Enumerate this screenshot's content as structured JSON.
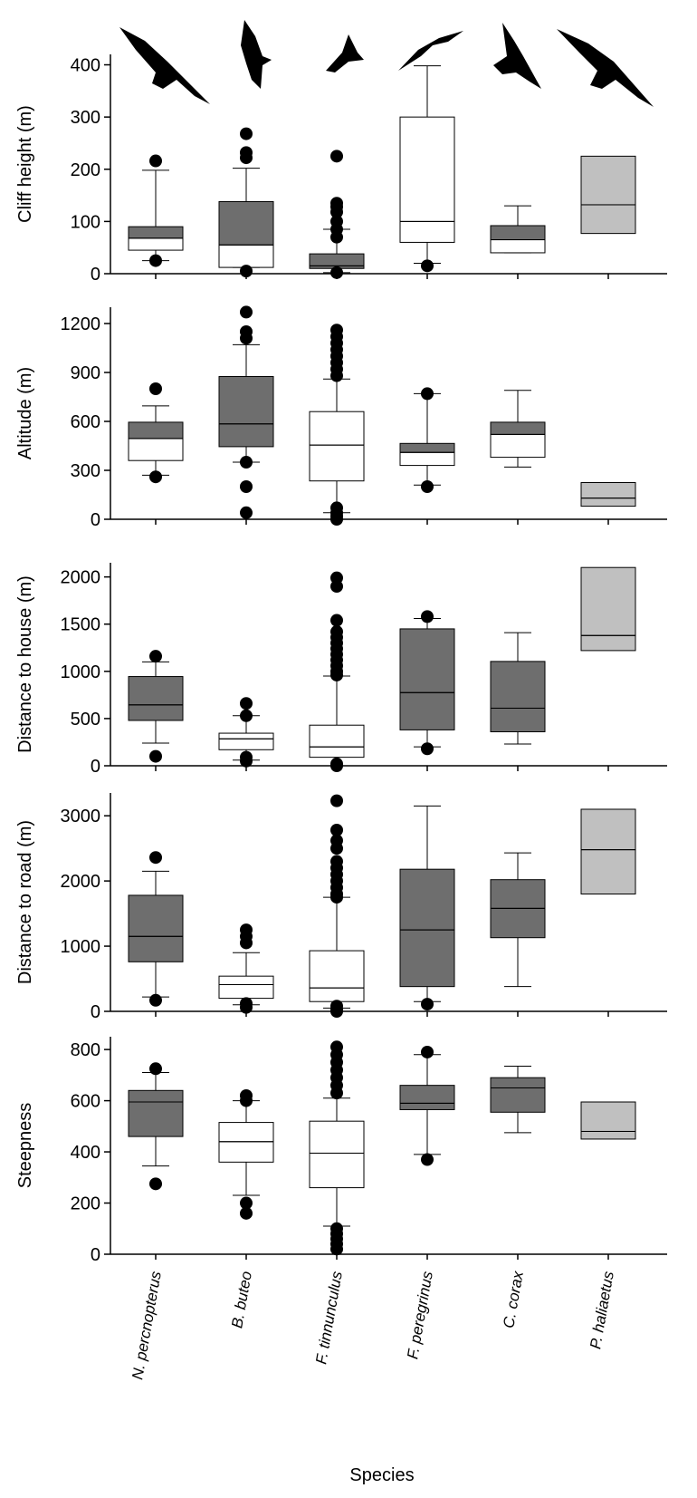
{
  "chart_data": [
    {
      "type": "box",
      "ylabel": "Cliff height (m)",
      "ylim": [
        0,
        420
      ],
      "yticks": [
        0,
        100,
        200,
        300,
        400
      ],
      "boxes": [
        {
          "whisker_low": 25,
          "q1": 45,
          "median": 68,
          "q3": 90,
          "whisker_high": 198,
          "outliers": [
            216,
            25
          ],
          "upper_color": "#6e6e6e",
          "lower_color": "#ffffff"
        },
        {
          "whisker_low": 12,
          "q1": 12,
          "median": 55,
          "q3": 138,
          "whisker_high": 202,
          "outliers": [
            268,
            232,
            222,
            5
          ],
          "upper_color": "#6e6e6e",
          "lower_color": "#ffffff"
        },
        {
          "whisker_low": 2,
          "q1": 10,
          "median": 15,
          "q3": 38,
          "whisker_high": 85,
          "outliers": [
            225,
            135,
            128,
            118,
            100,
            85,
            70,
            2
          ],
          "upper_color": "#6e6e6e",
          "lower_color": "#6e6e6e"
        },
        {
          "whisker_low": 20,
          "q1": 60,
          "median": 100,
          "q3": 300,
          "whisker_high": 398,
          "outliers": [
            15
          ],
          "upper_color": "#ffffff",
          "lower_color": "#ffffff"
        },
        {
          "whisker_low": 40,
          "q1": 40,
          "median": 65,
          "q3": 92,
          "whisker_high": 130,
          "upper_color": "#6e6e6e",
          "lower_color": "#ffffff"
        },
        {
          "q1": 77,
          "median": 132,
          "q3": 225,
          "upper_color": "#c0c0c0",
          "lower_color": "#c0c0c0"
        }
      ]
    },
    {
      "type": "box",
      "ylabel": "Altitude (m)",
      "ylim": [
        0,
        1300
      ],
      "yticks": [
        0,
        300,
        600,
        900,
        1200
      ],
      "boxes": [
        {
          "whisker_low": 270,
          "q1": 360,
          "median": 495,
          "q3": 595,
          "whisker_high": 695,
          "outliers": [
            800,
            260
          ],
          "upper_color": "#6e6e6e",
          "lower_color": "#ffffff"
        },
        {
          "whisker_low": 350,
          "q1": 445,
          "median": 585,
          "q3": 875,
          "whisker_high": 1070,
          "outliers": [
            1270,
            1150,
            1110,
            350,
            200,
            40
          ],
          "upper_color": "#6e6e6e",
          "lower_color": "#6e6e6e"
        },
        {
          "whisker_low": 40,
          "q1": 235,
          "median": 455,
          "q3": 660,
          "whisker_high": 860,
          "outliers": [
            1160,
            1120,
            1080,
            1040,
            1000,
            960,
            920,
            880,
            70,
            40,
            20,
            0
          ],
          "upper_color": "#ffffff",
          "lower_color": "#ffffff"
        },
        {
          "whisker_low": 210,
          "q1": 330,
          "median": 410,
          "q3": 465,
          "whisker_high": 770,
          "outliers": [
            770,
            200
          ],
          "upper_color": "#6e6e6e",
          "lower_color": "#ffffff"
        },
        {
          "whisker_low": 320,
          "q1": 380,
          "median": 520,
          "q3": 595,
          "whisker_high": 790,
          "upper_color": "#6e6e6e",
          "lower_color": "#ffffff"
        },
        {
          "q1": 80,
          "median": 130,
          "q3": 225,
          "upper_color": "#c0c0c0",
          "lower_color": "#c0c0c0"
        }
      ]
    },
    {
      "type": "box",
      "ylabel": "Distance to house (m)",
      "ylim": [
        0,
        2150
      ],
      "yticks": [
        0,
        500,
        1000,
        1500,
        2000
      ],
      "boxes": [
        {
          "whisker_low": 240,
          "q1": 480,
          "median": 645,
          "q3": 945,
          "whisker_high": 1100,
          "outliers": [
            1160,
            100
          ],
          "upper_color": "#6e6e6e",
          "lower_color": "#6e6e6e"
        },
        {
          "whisker_low": 60,
          "q1": 170,
          "median": 285,
          "q3": 345,
          "whisker_high": 530,
          "outliers": [
            660,
            530,
            90,
            50
          ],
          "upper_color": "#ffffff",
          "lower_color": "#ffffff"
        },
        {
          "whisker_low": 0,
          "q1": 90,
          "median": 200,
          "q3": 430,
          "whisker_high": 950,
          "outliers": [
            1990,
            1900,
            1540,
            1420,
            1360,
            1300,
            1240,
            1180,
            1120,
            1060,
            1000,
            960,
            20,
            0
          ],
          "upper_color": "#ffffff",
          "lower_color": "#ffffff"
        },
        {
          "whisker_low": 200,
          "q1": 380,
          "median": 775,
          "q3": 1450,
          "whisker_high": 1560,
          "outliers": [
            1580,
            180
          ],
          "upper_color": "#6e6e6e",
          "lower_color": "#6e6e6e"
        },
        {
          "whisker_low": 230,
          "q1": 360,
          "median": 610,
          "q3": 1105,
          "whisker_high": 1410,
          "upper_color": "#6e6e6e",
          "lower_color": "#6e6e6e"
        },
        {
          "q1": 1220,
          "median": 1380,
          "q3": 2100,
          "upper_color": "#c0c0c0",
          "lower_color": "#c0c0c0"
        }
      ]
    },
    {
      "type": "box",
      "ylabel": "Distance to road (m)",
      "ylim": [
        0,
        3350
      ],
      "yticks": [
        0,
        1000,
        2000,
        3000
      ],
      "boxes": [
        {
          "whisker_low": 220,
          "q1": 760,
          "median": 1150,
          "q3": 1780,
          "whisker_high": 2150,
          "outliers": [
            2360,
            170
          ],
          "upper_color": "#6e6e6e",
          "lower_color": "#6e6e6e"
        },
        {
          "whisker_low": 100,
          "q1": 200,
          "median": 410,
          "q3": 540,
          "whisker_high": 900,
          "outliers": [
            1250,
            1150,
            1050,
            120,
            60
          ],
          "upper_color": "#ffffff",
          "lower_color": "#ffffff"
        },
        {
          "whisker_low": 50,
          "q1": 150,
          "median": 360,
          "q3": 930,
          "whisker_high": 1750,
          "outliers": [
            3230,
            2780,
            2620,
            2500,
            2300,
            2200,
            2100,
            2000,
            1900,
            1800,
            1750,
            80,
            30,
            0
          ],
          "upper_color": "#ffffff",
          "lower_color": "#ffffff"
        },
        {
          "whisker_low": 150,
          "q1": 380,
          "median": 1250,
          "q3": 2180,
          "whisker_high": 3150,
          "outliers": [
            110
          ],
          "upper_color": "#6e6e6e",
          "lower_color": "#6e6e6e"
        },
        {
          "whisker_low": 380,
          "q1": 1130,
          "median": 1580,
          "q3": 2020,
          "whisker_high": 2430,
          "upper_color": "#6e6e6e",
          "lower_color": "#6e6e6e"
        },
        {
          "q1": 1800,
          "median": 2480,
          "q3": 3100,
          "upper_color": "#c0c0c0",
          "lower_color": "#c0c0c0"
        }
      ]
    },
    {
      "type": "box",
      "ylabel": "Steepness",
      "ylim": [
        0,
        850
      ],
      "yticks": [
        0,
        200,
        400,
        600,
        800
      ],
      "xlabel": "Species",
      "categories": [
        "N. percnopterus",
        "B. buteo",
        "F. tinnunculus",
        "F. peregrinus",
        "C. corax",
        "P. haliaetus"
      ],
      "boxes": [
        {
          "whisker_low": 345,
          "q1": 460,
          "median": 595,
          "q3": 640,
          "whisker_high": 710,
          "outliers": [
            725,
            275
          ],
          "upper_color": "#6e6e6e",
          "lower_color": "#6e6e6e"
        },
        {
          "whisker_low": 230,
          "q1": 360,
          "median": 440,
          "q3": 515,
          "whisker_high": 600,
          "outliers": [
            620,
            600,
            200,
            160
          ],
          "upper_color": "#ffffff",
          "lower_color": "#ffffff"
        },
        {
          "whisker_low": 110,
          "q1": 260,
          "median": 395,
          "q3": 520,
          "whisker_high": 610,
          "outliers": [
            810,
            780,
            750,
            720,
            690,
            660,
            630,
            100,
            80,
            60,
            40,
            20
          ],
          "upper_color": "#ffffff",
          "lower_color": "#ffffff"
        },
        {
          "whisker_low": 390,
          "q1": 565,
          "median": 590,
          "q3": 660,
          "whisker_high": 780,
          "outliers": [
            790,
            370
          ],
          "upper_color": "#6e6e6e",
          "lower_color": "#6e6e6e"
        },
        {
          "whisker_low": 475,
          "q1": 555,
          "median": 650,
          "q3": 690,
          "whisker_high": 735,
          "upper_color": "#6e6e6e",
          "lower_color": "#6e6e6e"
        },
        {
          "q1": 450,
          "median": 480,
          "q3": 595,
          "upper_color": "#c0c0c0",
          "lower_color": "#c0c0c0"
        }
      ]
    }
  ]
}
